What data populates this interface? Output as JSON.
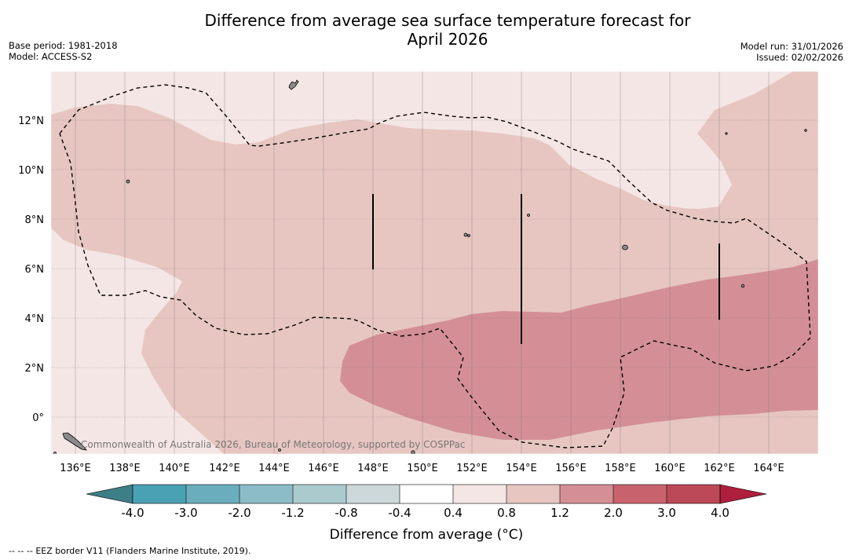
{
  "header": {
    "title_line1": "Difference from average sea surface temperature forecast for",
    "title_line2": "April 2026",
    "base_period": "Base period: 1981-2018",
    "model": "Model: ACCESS-S2",
    "model_run": "Model run: 31/01/2026",
    "issued": "Issued: 02/02/2026"
  },
  "map": {
    "lon_labels": [
      "136°E",
      "138°E",
      "140°E",
      "142°E",
      "144°E",
      "146°E",
      "148°E",
      "150°E",
      "152°E",
      "154°E",
      "156°E",
      "158°E",
      "160°E",
      "162°E",
      "164°E"
    ],
    "lat_labels": [
      "12°N",
      "10°N",
      "8°N",
      "6°N",
      "4°N",
      "2°N",
      "0°"
    ],
    "copyright": "Commonwealth of Australia 2026, Bureau of Meteorology, supported by COSPPac",
    "colors": {
      "anom_0_4_0_8": "#f4e6e4",
      "anom_0_8_1_2": "#e7c6c1",
      "anom_1_2_2_0": "#d48f96"
    }
  },
  "colorbar": {
    "title": "Difference from average (°C)",
    "tick_labels": [
      "-4.0",
      "-3.0",
      "-2.0",
      "-1.2",
      "-0.8",
      "-0.4",
      "0.4",
      "0.8",
      "1.2",
      "2.0",
      "3.0",
      "4.0"
    ],
    "colors": [
      "#3d7f87",
      "#4aa1b3",
      "#6aaebd",
      "#8bbcc8",
      "#abcace",
      "#cdd8da",
      "#ffffff",
      "#f4e6e4",
      "#e7c6c1",
      "#d48f96",
      "#c8636e",
      "#bc4957",
      "#ad1f3c"
    ]
  },
  "footer": {
    "legend_symbol": "-- -- --",
    "legend_text": "EEZ border V11 (Flanders Marine Institute, 2019)."
  }
}
